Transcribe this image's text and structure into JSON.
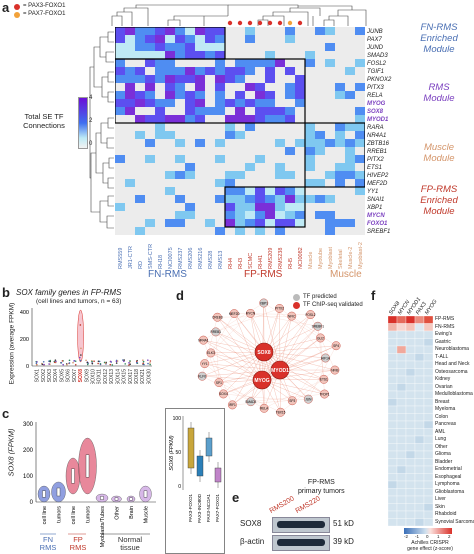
{
  "panel_a": {
    "label": "a",
    "legend": {
      "pax3": "= PAX3-FOXO1",
      "pax7": "= PAX7-FOXO1"
    },
    "colorbar": {
      "title": "Total SE TF\nConnections",
      "ticks": [
        "4",
        "2",
        "0"
      ]
    },
    "genes": [
      "JUNB",
      "PAX7",
      "JUND",
      "SMAD3",
      "FOSL2",
      "TGIF1",
      "PKNOX2",
      "PITX3",
      "RELA",
      "MYOG",
      "SOX8",
      "MYOD1",
      "RARA",
      "NR4A1",
      "ZBTB16",
      "RREB1",
      "PITX2",
      "ETS1",
      "HIVEP2",
      "MEF2D",
      "YY1",
      "SNAI1",
      "XBP1",
      "MYCN",
      "FOXO1",
      "SREBF1"
    ],
    "highlight_genes": [
      "MYOG",
      "SOX8",
      "MYOD1",
      "MYCN",
      "FOXO1"
    ],
    "samples": [
      "RMS559",
      "JR1-CTR",
      "RD",
      "SMS-CTR",
      "RH18",
      "NCI0075",
      "RMS237",
      "RMS206",
      "RMS216",
      "RMS28",
      "RMS13",
      "RH4",
      "RH3",
      "SCMC",
      "RH41",
      "RMS209",
      "RMS238",
      "RH5",
      "NCI0082",
      "Muscle",
      "Myotube",
      "Myoblast",
      "Skeletal",
      "Muscle-2",
      "Myoblast-2"
    ],
    "modules": [
      {
        "name": "FN-RMS\nEnriched\nModule",
        "color": "#4a6fb3"
      },
      {
        "name": "RMS\nModule",
        "color": "#7a3fbf"
      },
      {
        "name": "Muscle\nModule",
        "color": "#d4956a"
      },
      {
        "name": "FP-RMS\nEnriched\nModule",
        "color": "#c0392b"
      }
    ],
    "groups": [
      {
        "name": "FN-RMS",
        "color": "#4a6fb3"
      },
      {
        "name": "FP-RMS",
        "color": "#c0392b"
      },
      {
        "name": "Muscle",
        "color": "#d4956a"
      }
    ]
  },
  "panel_b": {
    "label": "b",
    "title": "SOX family genes in FP-RMS",
    "subtitle": "(cell lines and tumors, n = 63)",
    "ylabel": "Expression (average FPKM)",
    "yticks": [
      "400",
      "200",
      "0"
    ],
    "genes": [
      "SOX1",
      "SOX2",
      "SOX3",
      "SOX4",
      "SOX5",
      "SOX6",
      "SOX7",
      "SOX8",
      "SOX9",
      "SOX10",
      "SOX11",
      "SOX12",
      "SOX13",
      "SOX14",
      "SOX15",
      "SOX17",
      "SOX18",
      "SOX21",
      "SOX30"
    ]
  },
  "panel_c": {
    "label": "c",
    "ylabel": "SOX8 (FPKM)",
    "yticks": [
      "300",
      "200",
      "100",
      "0"
    ],
    "categories": [
      "cell line",
      "tumors",
      "cell line",
      "tumors",
      "Myoblasts/Tubes",
      "Other",
      "Brain",
      "Muscle"
    ],
    "group_labels": [
      {
        "text": "FN\nRMS",
        "color": "#4a6fb3"
      },
      {
        "text": "FP\nRMS",
        "color": "#c0392b"
      },
      {
        "text": "Normal\ntissue",
        "color": "#333"
      }
    ],
    "inset": {
      "ylabel": "SOX8 (FPKM)",
      "yticks": [
        "100",
        "50",
        "0"
      ],
      "categories": [
        "PAX3-FOXO1",
        "PAX3-INO80D",
        "PAX3-NCOA1",
        "PAX7-FOXO1"
      ]
    }
  },
  "panel_d": {
    "label": "d",
    "legend": {
      "predicted": "TF predicted",
      "validated": "TF ChIP-seq validated"
    },
    "hub_nodes": [
      "SOX8",
      "MYOD1",
      "MYOG"
    ],
    "nodes": [
      "HIF1A",
      "NFIB",
      "ETS1",
      "TFDP1",
      "JUN",
      "SP3",
      "TBX15",
      "RELA",
      "SMAD3",
      "IRF1",
      "SOX4",
      "SP1",
      "KLF6",
      "YY1",
      "ELK3",
      "NR4A1",
      "RREB1",
      "CREB3",
      "MEF2D",
      "MYCN",
      "XBP1",
      "PITX2",
      "NFIC",
      "FOSL2",
      "SREBF1",
      "GLI2",
      "SP4"
    ]
  },
  "panel_e": {
    "label": "e",
    "title": "FP-RMS\nprimary tumors",
    "lanes": [
      "RMS200",
      "RMS220"
    ],
    "rows": [
      {
        "name": "SOX8",
        "size": "51 kD"
      },
      {
        "name": "β-actin",
        "size": "39 kD"
      }
    ]
  },
  "panel_f": {
    "label": "f",
    "columns": [
      "SOX8",
      "MYCN",
      "MYOD1",
      "PAX3",
      "MYOG"
    ],
    "rows": [
      "FP-RMS",
      "FN-RMS",
      "Ewing's",
      "Gastric",
      "Neuroblastoma",
      "T-ALL",
      "Head and Neck",
      "Osteosarcoma",
      "Kidney",
      "Ovarian",
      "Medulloblastoma",
      "Breast",
      "Myeloma",
      "Colon",
      "Pancreas",
      "AML",
      "Lung",
      "Other",
      "Glioma",
      "Bladder",
      "Endometrial",
      "Esophageal",
      "Lymphoma",
      "Glioblastoma",
      "Liver",
      "Skin",
      "Rhabdoid",
      "Synovial Sarcoma"
    ],
    "scale_ticks": [
      "-2",
      "-1",
      "0",
      "1",
      "2"
    ],
    "scale_title": "Achilles CRISPR\ngene effect (z-score)"
  }
}
